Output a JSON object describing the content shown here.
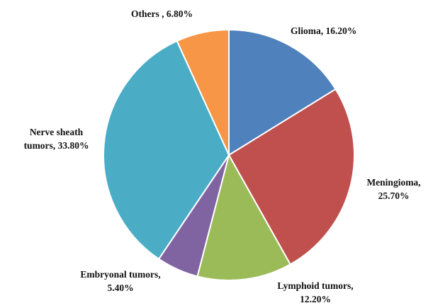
{
  "chart_data": {
    "type": "pie",
    "categories": [
      "Glioma,",
      "Meningioma,",
      "Lymphoid tumors,",
      "Embryonal tumors,",
      "Nerve sheath tumors,",
      "Others ,"
    ],
    "values": [
      16.2,
      25.7,
      12.2,
      5.4,
      33.8,
      6.8
    ],
    "value_labels": [
      "16.20%",
      "25.70%",
      "12.20%",
      "5.40%",
      "33.80%",
      "6.80%"
    ],
    "colors": [
      "#4f81bd",
      "#c0504d",
      "#9bbb59",
      "#8064a2",
      "#4bacc6",
      "#f79646"
    ]
  }
}
